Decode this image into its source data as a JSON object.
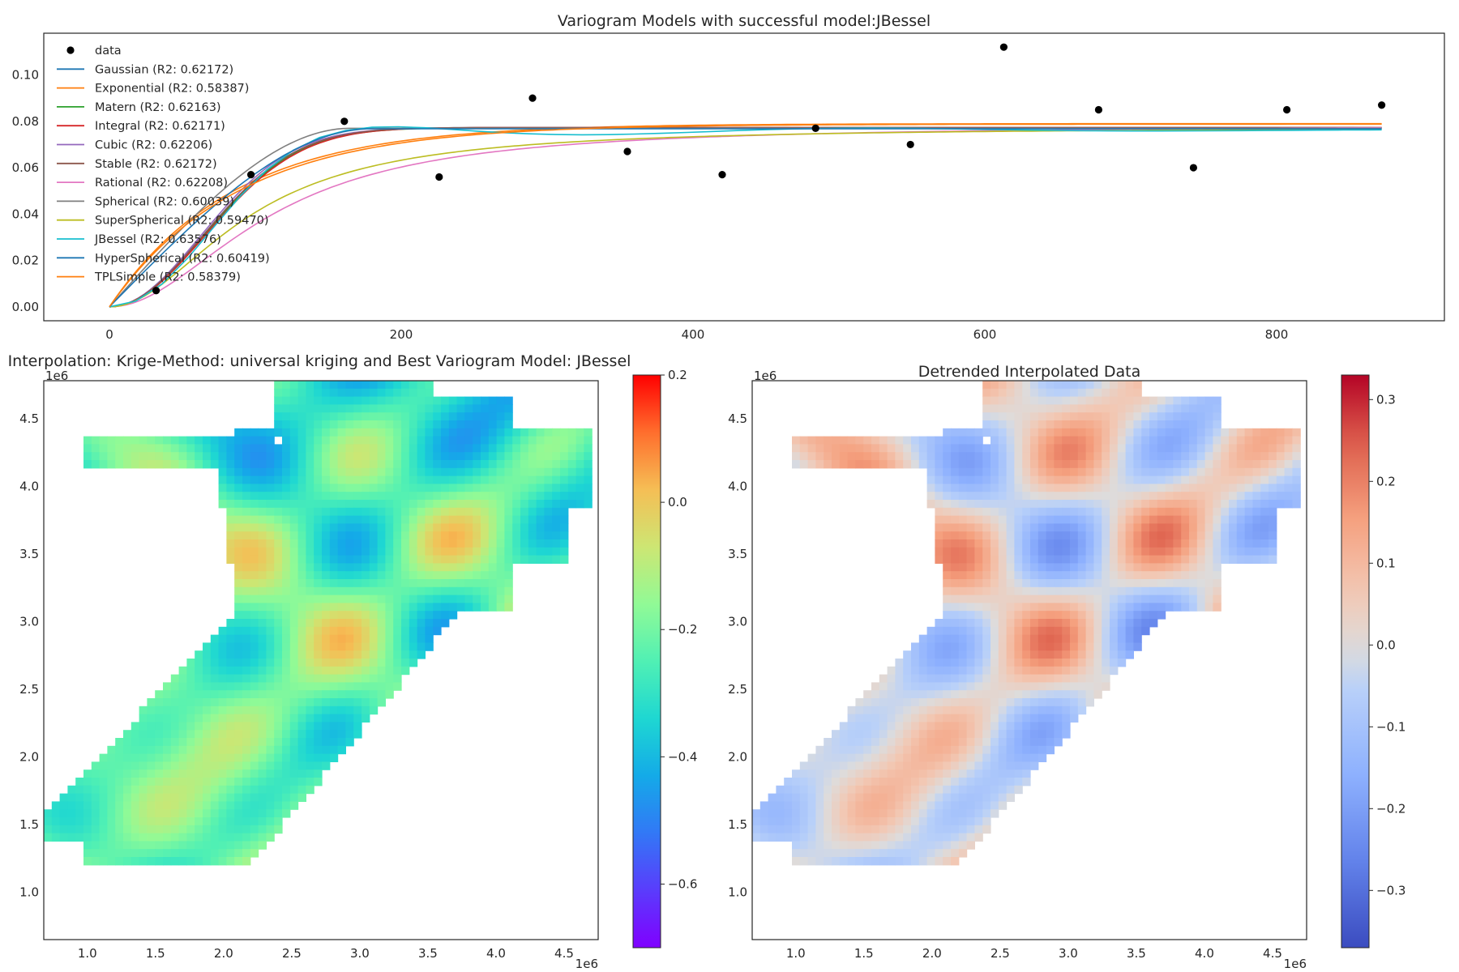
{
  "chart_data": [
    {
      "type": "line",
      "title": "Variogram Models with successful model:JBessel",
      "xlabel": "",
      "ylabel": "",
      "xlim": [
        -45,
        915
      ],
      "ylim": [
        -0.006,
        0.118
      ],
      "grid": false,
      "legend_position": "upper-left",
      "x_ticks": [
        "0",
        "200",
        "400",
        "600",
        "800"
      ],
      "y_ticks": [
        "0.00",
        "0.02",
        "0.04",
        "0.06",
        "0.08",
        "0.10"
      ],
      "scatter": {
        "name": "data",
        "x": [
          32,
          97,
          161,
          226,
          290,
          355,
          420,
          484,
          549,
          613,
          678,
          743,
          807,
          872
        ],
        "y": [
          0.007,
          0.057,
          0.08,
          0.056,
          0.09,
          0.067,
          0.057,
          0.077,
          0.07,
          0.112,
          0.085,
          0.06,
          0.085,
          0.087
        ]
      },
      "series": [
        {
          "name": "Gaussian (R2: 0.62172)",
          "color": "#1f77b4",
          "model": "gaussian",
          "sill": 0.0773,
          "scale": 90
        },
        {
          "name": "Exponential (R2: 0.58387)",
          "color": "#ff7f0e",
          "model": "exponential",
          "sill": 0.079,
          "scale": 85
        },
        {
          "name": "Matern (R2: 0.62163)",
          "color": "#2ca02c",
          "model": "gaussian",
          "sill": 0.0772,
          "scale": 91
        },
        {
          "name": "Integral (R2: 0.62171)",
          "color": "#d62728",
          "model": "gaussian",
          "sill": 0.0773,
          "scale": 92
        },
        {
          "name": "Cubic (R2: 0.62206)",
          "color": "#9467bd",
          "model": "gaussian",
          "sill": 0.0772,
          "scale": 88
        },
        {
          "name": "Stable (R2: 0.62172)",
          "color": "#8c564b",
          "model": "gaussian",
          "sill": 0.0773,
          "scale": 90
        },
        {
          "name": "Rational (R2: 0.62208)",
          "color": "#e377c2",
          "model": "rational",
          "sill": 0.0785,
          "scale": 110
        },
        {
          "name": "Spherical (R2: 0.60039)",
          "color": "#7f7f7f",
          "model": "spherical",
          "sill": 0.077,
          "scale": 165
        },
        {
          "name": "SuperSpherical (R2: 0.59470)",
          "color": "#bcbd22",
          "model": "rational",
          "sill": 0.0775,
          "scale": 95
        },
        {
          "name": "JBessel (R2: 0.63576)",
          "color": "#17becf",
          "model": "jbessel"
        },
        {
          "name": "HyperSpherical (R2: 0.60419)",
          "color": "#1f77b4",
          "model": "spherical",
          "sill": 0.0768,
          "scale": 180
        },
        {
          "name": "TPLSimple (R2: 0.58379)",
          "color": "#ff7f0e",
          "model": "exponential",
          "sill": 0.0788,
          "scale": 88
        }
      ]
    },
    {
      "type": "heatmap",
      "title": "Interpolation: Krige-Method: universal kriging and Best Variogram Model: JBessel",
      "x_ticks": [
        "1.0",
        "1.5",
        "2.0",
        "2.5",
        "3.0",
        "3.5",
        "4.0",
        "4.5"
      ],
      "y_ticks": [
        "1.0",
        "1.5",
        "2.0",
        "2.5",
        "3.0",
        "3.5",
        "4.0",
        "4.5"
      ],
      "x_offset_label": "1e6",
      "y_offset_label": "1e6",
      "xlim": [
        0.68,
        4.75
      ],
      "ylim": [
        0.65,
        4.78
      ],
      "colormap": "rainbow",
      "vmin": -0.7,
      "vmax": 0.2,
      "colorbar_ticks": [
        "0.2",
        "0.0",
        "−0.2",
        "−0.4",
        "−0.6"
      ]
    },
    {
      "type": "heatmap",
      "title": "Detrended Interpolated Data",
      "x_ticks": [
        "1.0",
        "1.5",
        "2.0",
        "2.5",
        "3.0",
        "3.5",
        "4.0",
        "4.5"
      ],
      "y_ticks": [
        "1.0",
        "1.5",
        "2.0",
        "2.5",
        "3.0",
        "3.5",
        "4.0",
        "4.5"
      ],
      "x_offset_label": "1e6",
      "y_offset_label": "1e6",
      "xlim": [
        0.68,
        4.75
      ],
      "ylim": [
        0.65,
        4.78
      ],
      "colormap": "coolwarm",
      "vmin": -0.37,
      "vmax": 0.33,
      "colorbar_ticks": [
        "0.3",
        "0.2",
        "0.1",
        "0.0",
        "−0.1",
        "−0.2",
        "−0.3"
      ]
    }
  ]
}
